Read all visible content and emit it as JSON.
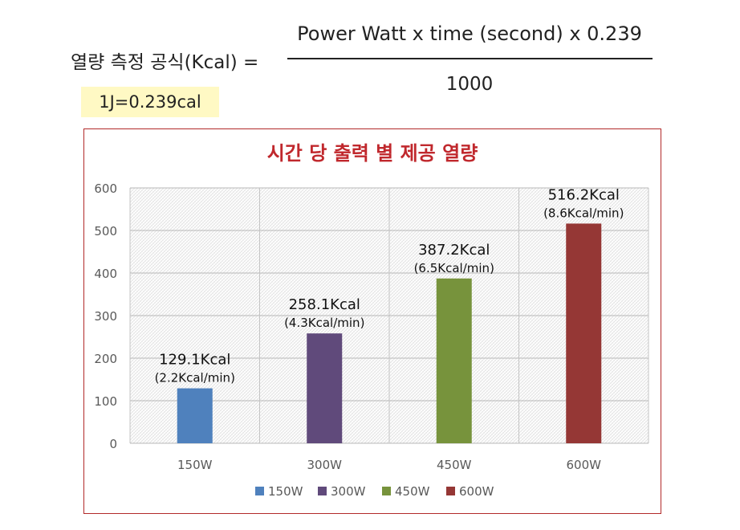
{
  "formula": {
    "label": "열량 측정 공식(Kcal) =",
    "numerator": "Power Watt x time (second) x 0.239",
    "denominator": "1000",
    "note": "1J=0.239cal"
  },
  "chart_data": {
    "type": "bar",
    "title": "시간 당 출력 별 제공 열량",
    "categories": [
      "150W",
      "300W",
      "450W",
      "600W"
    ],
    "values": [
      129.1,
      258.1,
      387.2,
      516.2
    ],
    "value_labels": [
      "129.1Kcal",
      "258.1Kcal",
      "387.2Kcal",
      "516.2Kcal"
    ],
    "rate_labels": [
      "(2.2Kcal/min)",
      "(4.3Kcal/min)",
      "(6.5Kcal/min)",
      "(8.6Kcal/min)"
    ],
    "colors": [
      "#4f81bd",
      "#604a7b",
      "#77933c",
      "#953735"
    ],
    "ylim": [
      0,
      600
    ],
    "yticks": [
      "0",
      "100",
      "200",
      "300",
      "400",
      "500",
      "600"
    ],
    "grid": true,
    "legend": {
      "position": "bottom",
      "entries": [
        "150W",
        "300W",
        "450W",
        "600W"
      ]
    },
    "xlabel": "",
    "ylabel": ""
  }
}
